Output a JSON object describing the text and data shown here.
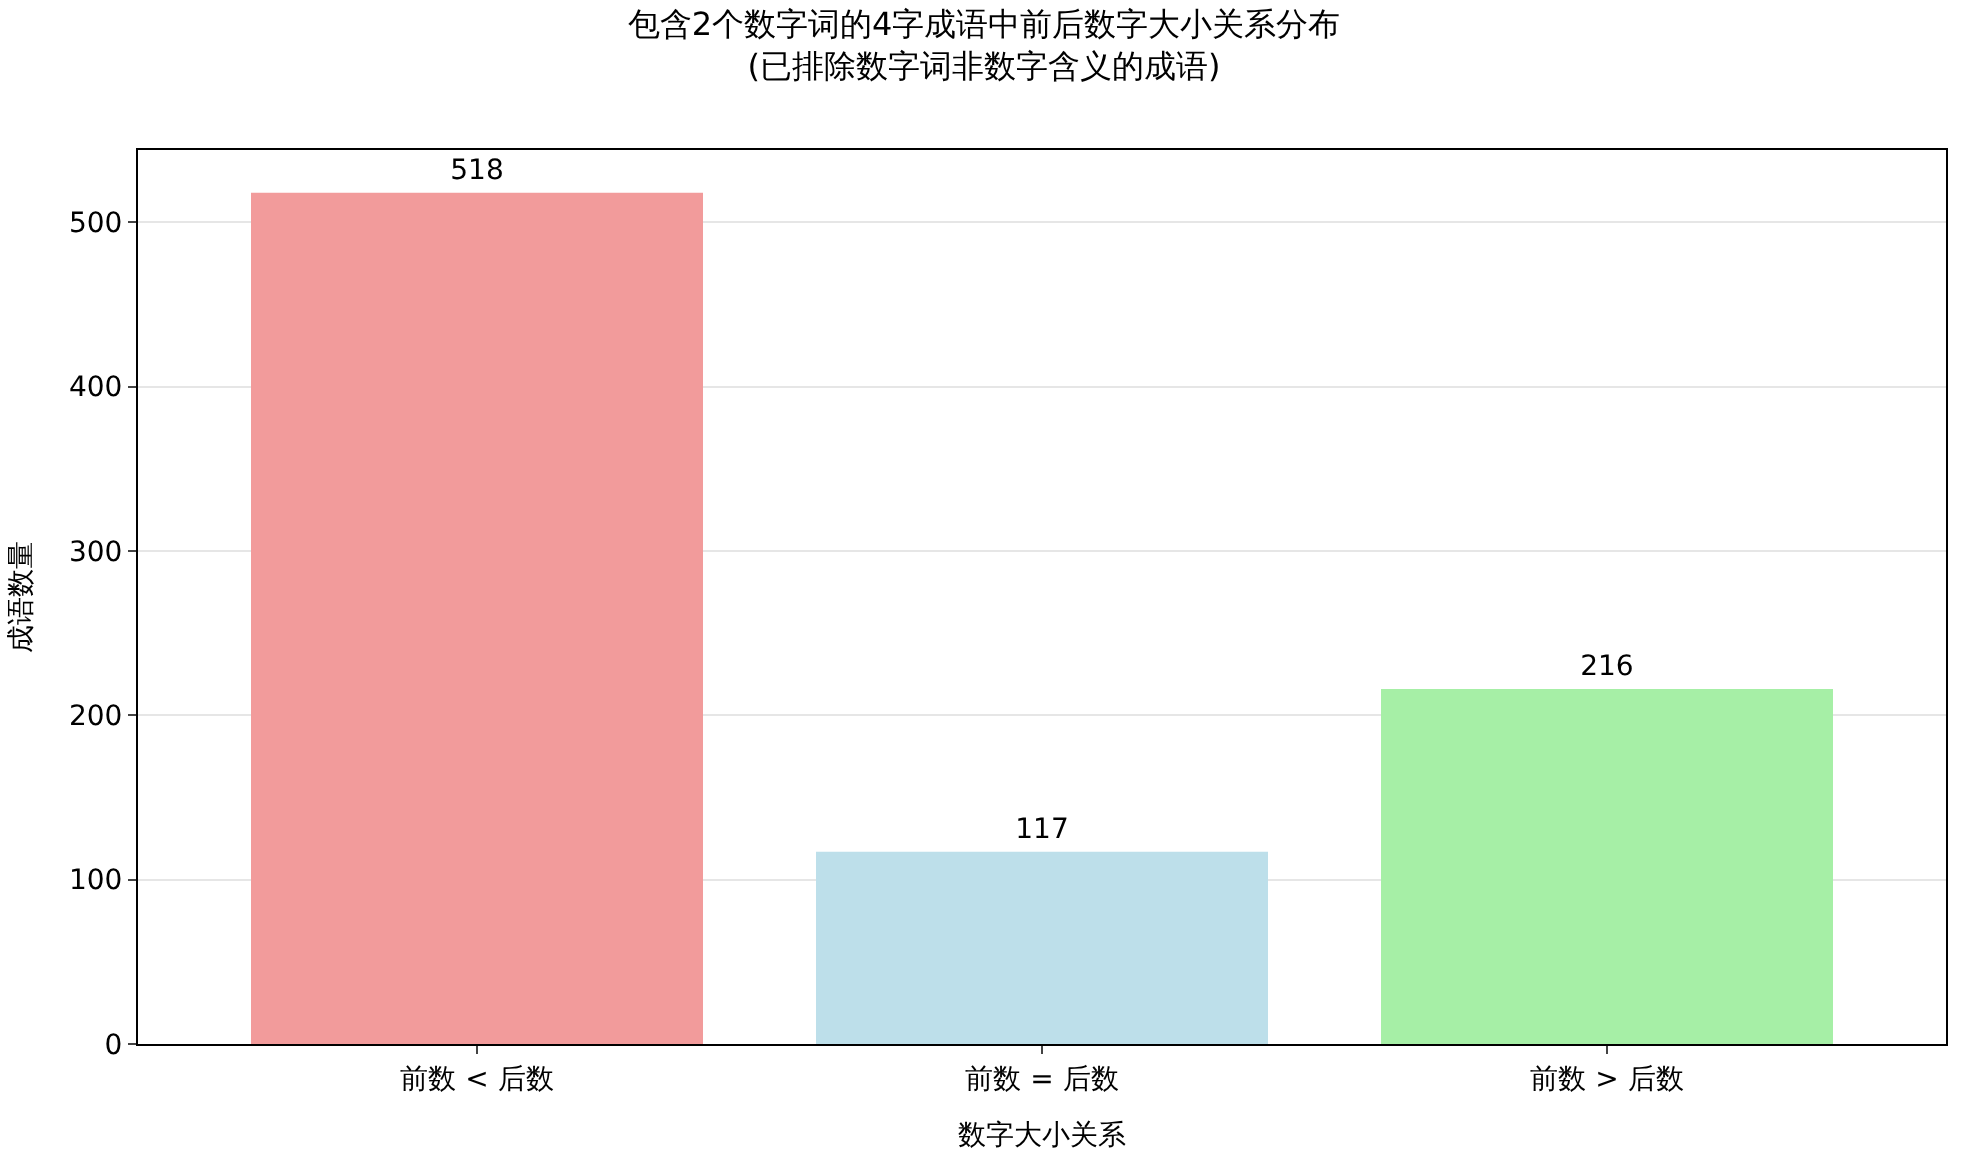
{
  "chart_data": {
    "type": "bar",
    "title": "包含2个数字词的4字成语中前后数字大小关系分布\n(已排除数字词非数字含义的成语)",
    "xlabel": "数字大小关系",
    "ylabel": "成语数量",
    "categories": [
      "前数 < 后数",
      "前数 = 后数",
      "前数 > 后数"
    ],
    "values": [
      518,
      117,
      216
    ],
    "colors": [
      "#f29b9b",
      "#bddfea",
      "#a6efa6"
    ],
    "ylim": [
      0,
      544
    ],
    "yticks": [
      0,
      100,
      200,
      300,
      400,
      500
    ],
    "grid": "y",
    "data_labels": true
  }
}
